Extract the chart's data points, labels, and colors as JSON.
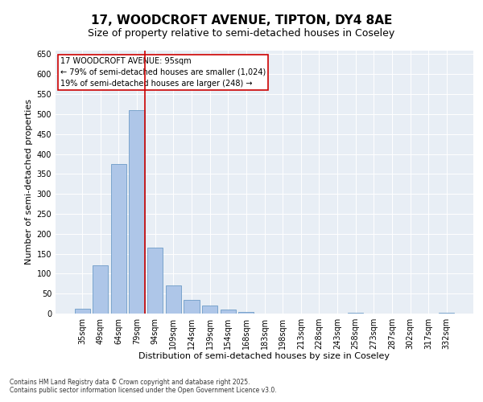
{
  "title_line1": "17, WOODCROFT AVENUE, TIPTON, DY4 8AE",
  "title_line2": "Size of property relative to semi-detached houses in Coseley",
  "xlabel": "Distribution of semi-detached houses by size in Coseley",
  "ylabel": "Number of semi-detached properties",
  "categories": [
    "35sqm",
    "49sqm",
    "64sqm",
    "79sqm",
    "94sqm",
    "109sqm",
    "124sqm",
    "139sqm",
    "154sqm",
    "168sqm",
    "183sqm",
    "198sqm",
    "213sqm",
    "228sqm",
    "243sqm",
    "258sqm",
    "273sqm",
    "287sqm",
    "302sqm",
    "317sqm",
    "332sqm"
  ],
  "values": [
    12,
    120,
    375,
    510,
    165,
    70,
    35,
    20,
    10,
    5,
    0,
    0,
    0,
    0,
    0,
    2,
    0,
    0,
    0,
    0,
    2
  ],
  "bar_color": "#aec6e8",
  "bar_edgecolor": "#5a8fc0",
  "vline_color": "#cc0000",
  "annotation_title": "17 WOODCROFT AVENUE: 95sqm",
  "annotation_line1": "← 79% of semi-detached houses are smaller (1,024)",
  "annotation_line2": "19% of semi-detached houses are larger (248) →",
  "annotation_box_color": "#cc0000",
  "ylim": [
    0,
    660
  ],
  "yticks": [
    0,
    50,
    100,
    150,
    200,
    250,
    300,
    350,
    400,
    450,
    500,
    550,
    600,
    650
  ],
  "background_color": "#e8eef5",
  "footer_line1": "Contains HM Land Registry data © Crown copyright and database right 2025.",
  "footer_line2": "Contains public sector information licensed under the Open Government Licence v3.0.",
  "title_fontsize": 11,
  "subtitle_fontsize": 9,
  "axis_label_fontsize": 8,
  "tick_fontsize": 7,
  "annotation_fontsize": 7,
  "footer_fontsize": 5.5
}
